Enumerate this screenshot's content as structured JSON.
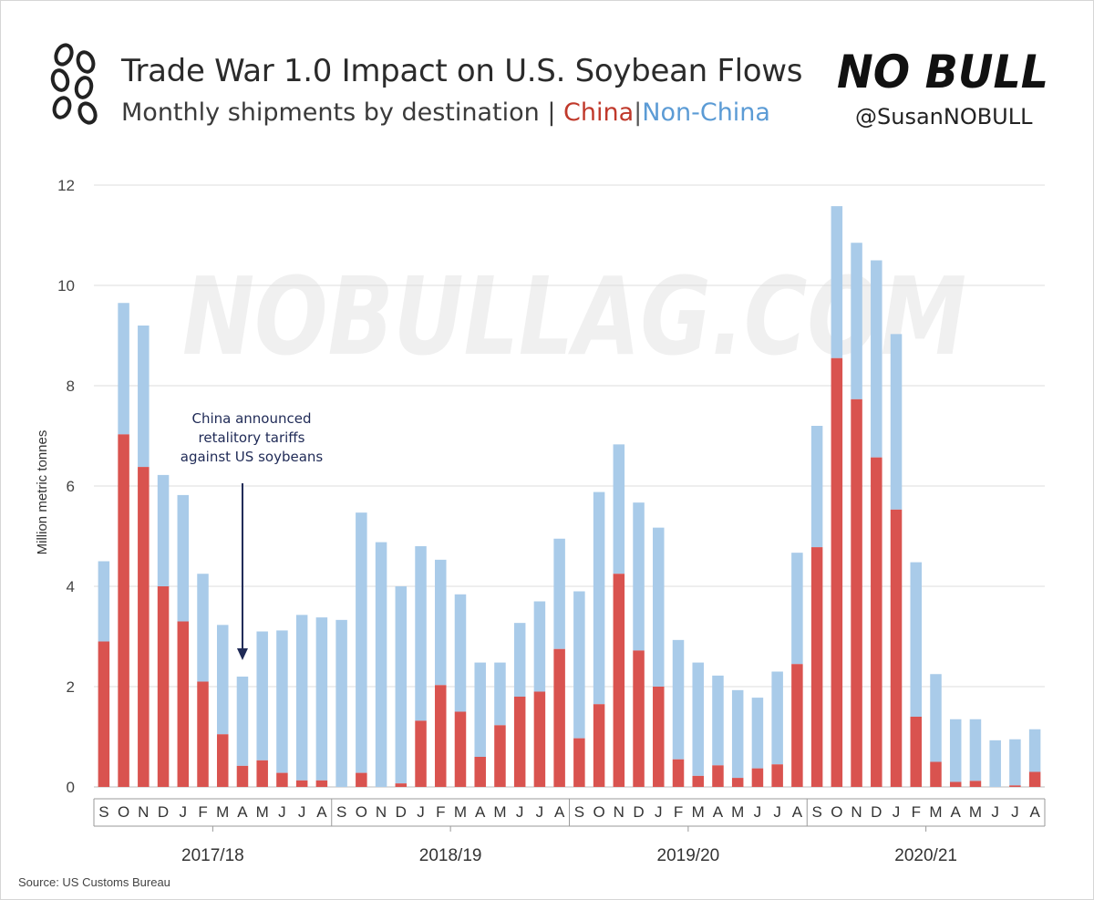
{
  "header": {
    "title": "Trade War 1.0 Impact on U.S. Soybean Flows",
    "subtitle_prefix": "Monthly shipments by destination |",
    "subtitle_china": "China",
    "subtitle_sep": "|",
    "subtitle_nonchina": "Non-China",
    "brand_text": "NO BULL",
    "handle": "@SusanNOBULL",
    "watermark": "NOBULLAG.COM",
    "source": "Source: US Customs Bureau"
  },
  "colors": {
    "china": "#d9534f",
    "nonchina": "#a9cbe9",
    "china_text": "#c0392b",
    "nonchina_text": "#5b9bd5",
    "annotation": "#1f2a56"
  },
  "chart_data": {
    "type": "bar",
    "stacked": true,
    "title": "Trade War 1.0 Impact on U.S. Soybean Flows",
    "subtitle": "Monthly shipments by destination | China | Non-China",
    "ylabel": "Million metric tonnes",
    "ylim": [
      0,
      12
    ],
    "yticks": [
      0,
      2,
      4,
      6,
      8,
      10,
      12
    ],
    "grid": true,
    "categories": [
      "S",
      "O",
      "N",
      "D",
      "J",
      "F",
      "M",
      "A",
      "M",
      "J",
      "J",
      "A",
      "S",
      "O",
      "N",
      "D",
      "J",
      "F",
      "M",
      "A",
      "M",
      "J",
      "J",
      "A",
      "S",
      "O",
      "N",
      "D",
      "J",
      "F",
      "M",
      "A",
      "M",
      "J",
      "J",
      "A",
      "S",
      "O",
      "N",
      "D",
      "J",
      "F",
      "M",
      "A",
      "M",
      "J",
      "J",
      "A"
    ],
    "groups": [
      {
        "label": "2017/18",
        "start": 0,
        "count": 12
      },
      {
        "label": "2018/19",
        "start": 12,
        "count": 12
      },
      {
        "label": "2019/20",
        "start": 24,
        "count": 12
      },
      {
        "label": "2020/21",
        "start": 36,
        "count": 12
      }
    ],
    "totals": [
      4.5,
      9.65,
      9.2,
      6.22,
      5.82,
      4.25,
      3.23,
      2.2,
      3.1,
      3.12,
      3.43,
      3.38,
      3.33,
      5.47,
      4.88,
      4.0,
      4.8,
      4.53,
      3.84,
      2.48,
      2.48,
      3.27,
      3.7,
      4.95,
      3.9,
      5.88,
      6.83,
      5.67,
      5.17,
      2.93,
      2.48,
      2.22,
      1.93,
      1.78,
      2.3,
      4.67,
      7.2,
      11.58,
      10.85,
      10.5,
      9.03,
      4.48,
      2.25,
      1.35,
      1.35,
      0.93,
      0.95,
      1.15
    ],
    "series": [
      {
        "name": "China",
        "values": [
          2.9,
          7.03,
          6.38,
          4.0,
          3.3,
          2.1,
          1.05,
          0.42,
          0.53,
          0.28,
          0.13,
          0.13,
          0.0,
          0.28,
          0.0,
          0.07,
          1.32,
          2.03,
          1.5,
          0.6,
          1.23,
          1.8,
          1.9,
          2.75,
          0.97,
          1.65,
          4.25,
          2.72,
          2.0,
          0.55,
          0.22,
          0.43,
          0.18,
          0.37,
          0.45,
          2.45,
          4.78,
          8.55,
          7.73,
          6.57,
          5.53,
          1.4,
          0.5,
          0.1,
          0.12,
          0.0,
          0.03,
          0.3
        ]
      },
      {
        "name": "Non-China",
        "values": [
          1.6,
          2.62,
          2.82,
          2.22,
          2.52,
          2.15,
          2.18,
          1.78,
          2.57,
          2.84,
          3.3,
          3.25,
          3.33,
          5.19,
          4.88,
          3.93,
          3.48,
          2.5,
          2.34,
          1.88,
          1.25,
          1.47,
          1.8,
          2.2,
          2.93,
          4.23,
          2.58,
          2.95,
          3.17,
          2.38,
          2.26,
          1.79,
          1.75,
          1.41,
          1.85,
          2.22,
          2.42,
          3.03,
          3.12,
          3.93,
          3.5,
          3.08,
          1.75,
          1.25,
          1.23,
          0.93,
          0.92,
          0.85
        ]
      }
    ],
    "annotation": {
      "lines": [
        "China announced",
        "retalitory tariffs",
        "against US soybeans"
      ],
      "target_index": 7
    }
  }
}
